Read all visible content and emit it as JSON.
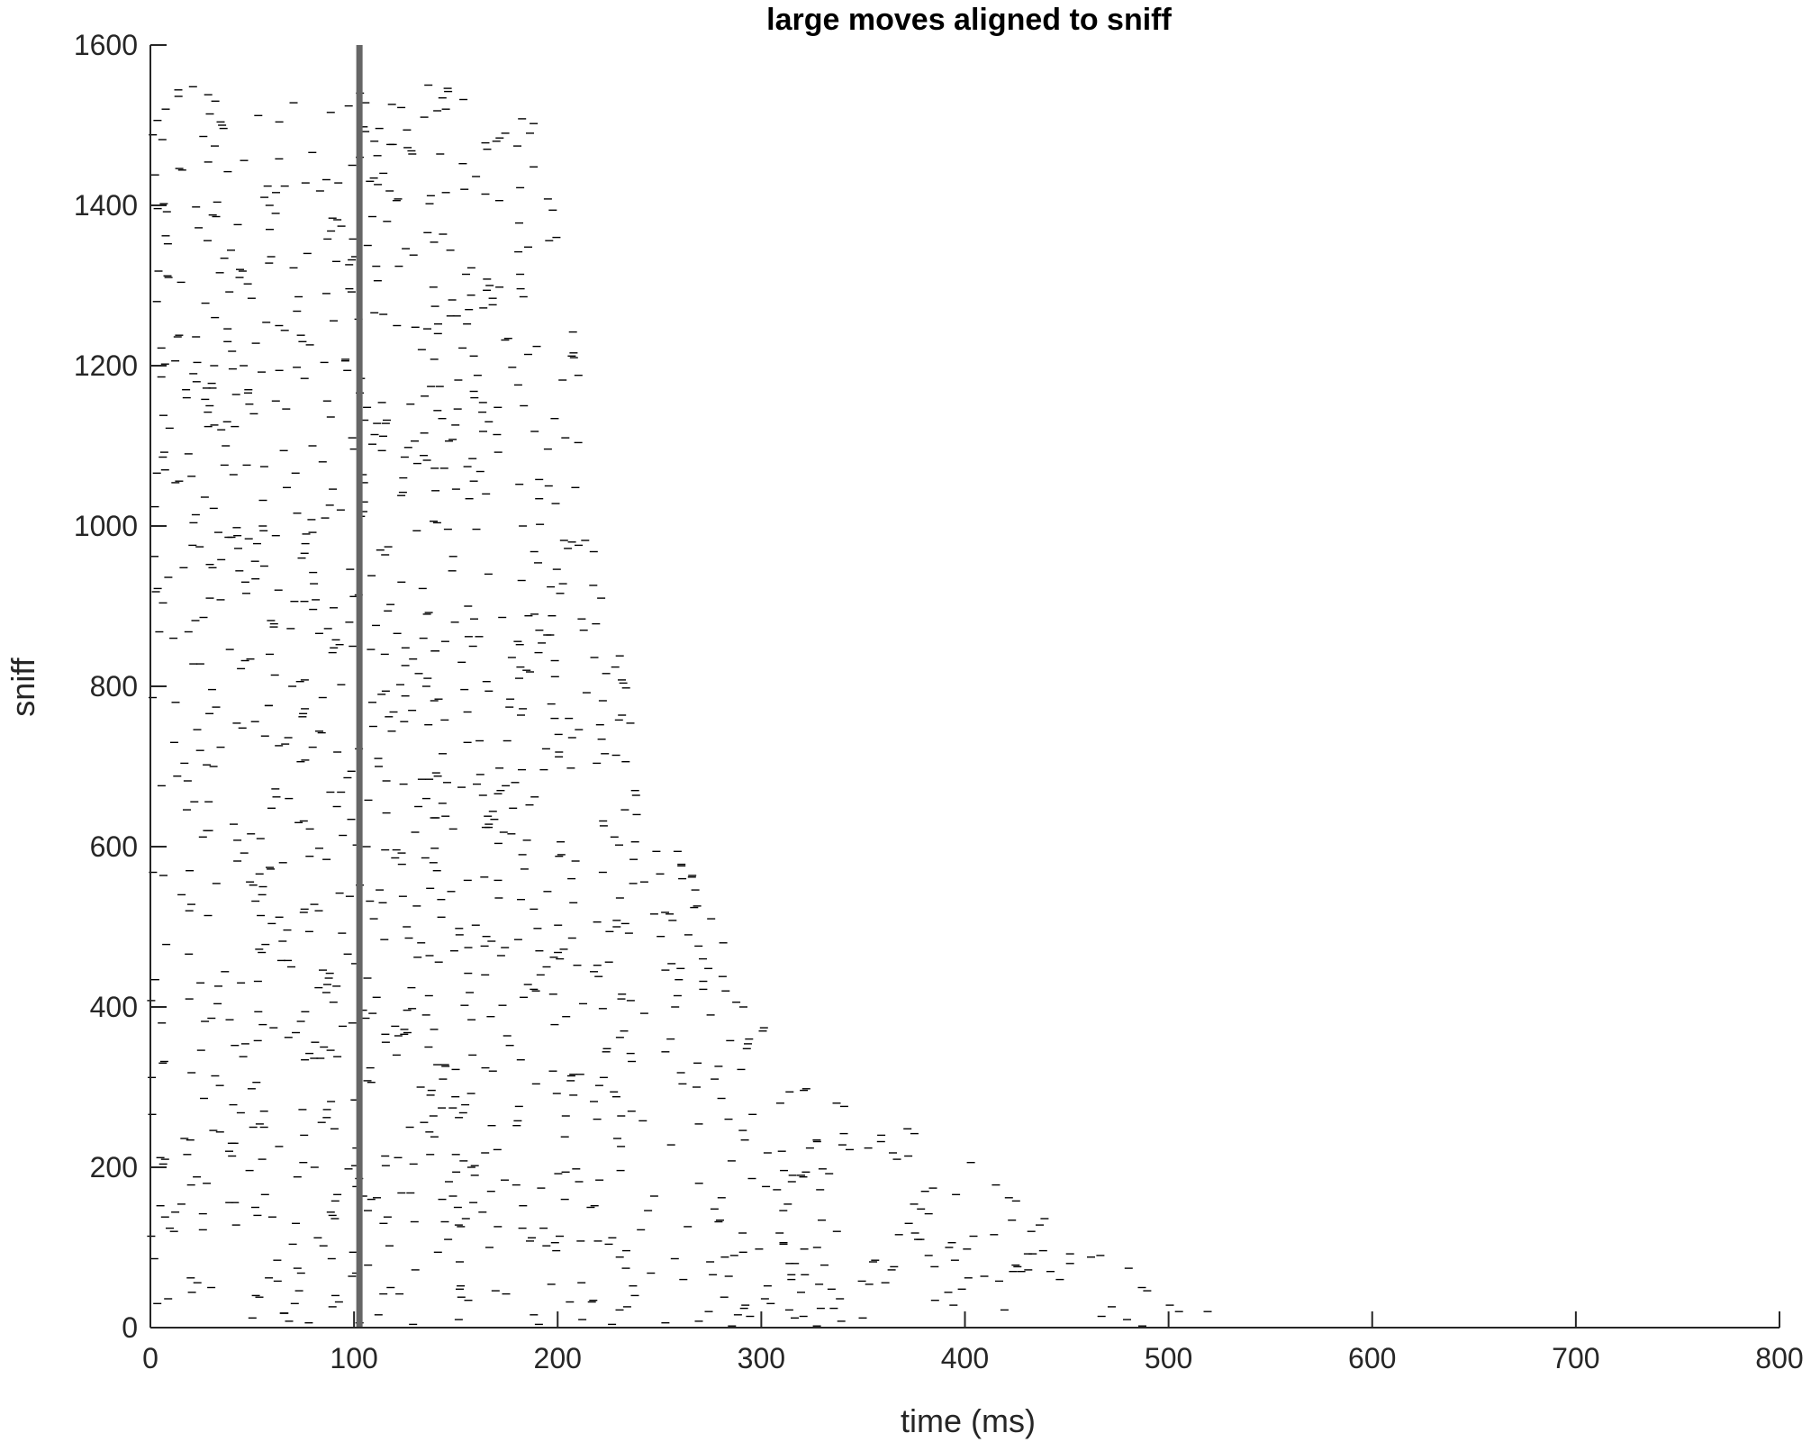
{
  "chart_data": {
    "type": "scatter",
    "subtype": "raster",
    "title": "large moves aligned to sniff",
    "xlabel": "time (ms)",
    "ylabel": "sniff",
    "xlim": [
      0,
      800
    ],
    "ylim": [
      0,
      1600
    ],
    "xticks": [
      0,
      100,
      200,
      300,
      400,
      500,
      600,
      700,
      800
    ],
    "yticks": [
      0,
      200,
      400,
      600,
      800,
      1000,
      1200,
      1400,
      1600
    ],
    "grid": false,
    "marker": "short horizontal tick per event",
    "marker_color": "#000000",
    "reference_line": {
      "x": 100,
      "orientation": "vertical",
      "color": "#666666"
    },
    "rows": 1550,
    "row_end_envelope": {
      "description": "latest event time per sniff row (ms), read from raster edge",
      "points": [
        {
          "row": 0,
          "t": 540
        },
        {
          "row": 20,
          "t": 520
        },
        {
          "row": 50,
          "t": 500
        },
        {
          "row": 100,
          "t": 470
        },
        {
          "row": 150,
          "t": 430
        },
        {
          "row": 200,
          "t": 410
        },
        {
          "row": 260,
          "t": 370
        },
        {
          "row": 300,
          "t": 330
        },
        {
          "row": 350,
          "t": 310
        },
        {
          "row": 400,
          "t": 300
        },
        {
          "row": 450,
          "t": 290
        },
        {
          "row": 500,
          "t": 280
        },
        {
          "row": 550,
          "t": 270
        },
        {
          "row": 600,
          "t": 260
        },
        {
          "row": 650,
          "t": 250
        },
        {
          "row": 700,
          "t": 240
        },
        {
          "row": 800,
          "t": 235
        },
        {
          "row": 900,
          "t": 225
        },
        {
          "row": 1000,
          "t": 222
        },
        {
          "row": 1100,
          "t": 215
        },
        {
          "row": 1200,
          "t": 210
        },
        {
          "row": 1300,
          "t": 205
        },
        {
          "row": 1400,
          "t": 200
        },
        {
          "row": 1500,
          "t": 190
        },
        {
          "row": 1550,
          "t": 180
        }
      ]
    },
    "series": [
      {
        "x": [],
        "y": []
      }
    ]
  },
  "colors": {
    "background": "#ffffff",
    "axis": "#262626",
    "marker": "#000000",
    "reference_line": "#666666"
  }
}
